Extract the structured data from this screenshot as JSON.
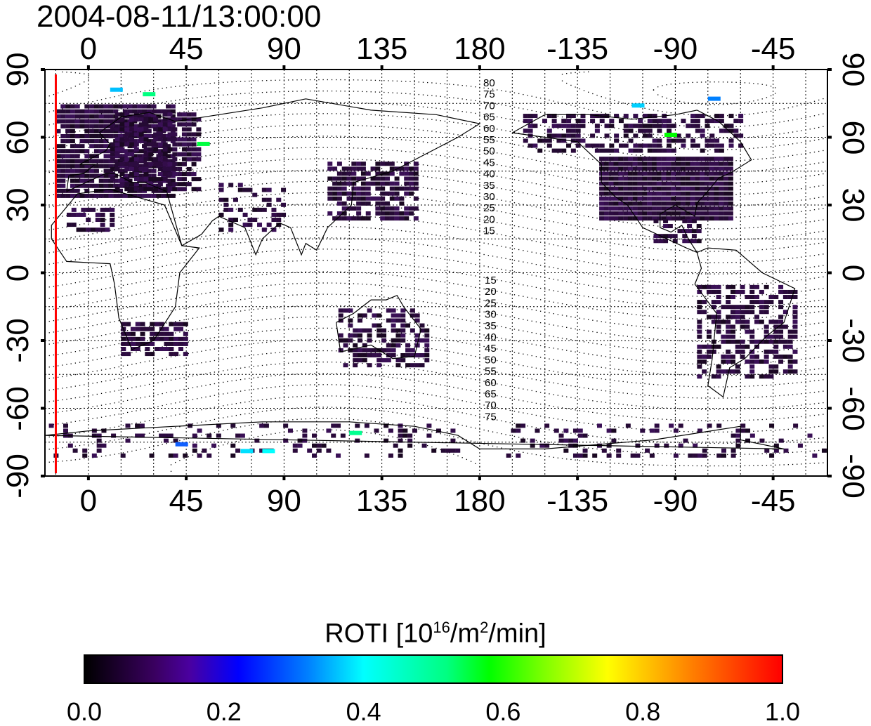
{
  "title": "2004-08-11/13:00:00",
  "map": {
    "lon_ticks_top": [
      "0",
      "45",
      "90",
      "135",
      "180",
      "-135",
      "-90",
      "-45"
    ],
    "lon_ticks_bottom": [
      "0",
      "45",
      "90",
      "135",
      "180",
      "-135",
      "-90",
      "-45"
    ],
    "lat_ticks_left": [
      "90",
      "60",
      "30",
      "0",
      "-30",
      "-60",
      "-90"
    ],
    "lat_ticks_right": [
      "90",
      "60",
      "30",
      "0",
      "-30",
      "-60",
      "-90"
    ],
    "magnetic_lat_labels_north": [
      "80",
      "75",
      "70",
      "65",
      "60",
      "55",
      "50",
      "45",
      "40",
      "35",
      "30",
      "25",
      "20",
      "15"
    ],
    "magnetic_lat_labels_south": [
      "15",
      "20",
      "25",
      "30",
      "35",
      "40",
      "45",
      "50",
      "55",
      "60",
      "65",
      "70",
      "75"
    ],
    "lon_range": [
      -20,
      340
    ],
    "lat_range": [
      -90,
      90
    ],
    "marker_line_color": "#ff0000",
    "marker_line_lon": -15
  },
  "colorbar": {
    "title_text": "ROTI  [10",
    "title_sup1": "16",
    "title_mid": "/m",
    "title_sup2": "2",
    "title_end": "/min]",
    "ticks": [
      "0.0",
      "0.2",
      "0.4",
      "0.6",
      "0.8",
      "1.0"
    ],
    "range": [
      0.0,
      1.0
    ]
  }
}
